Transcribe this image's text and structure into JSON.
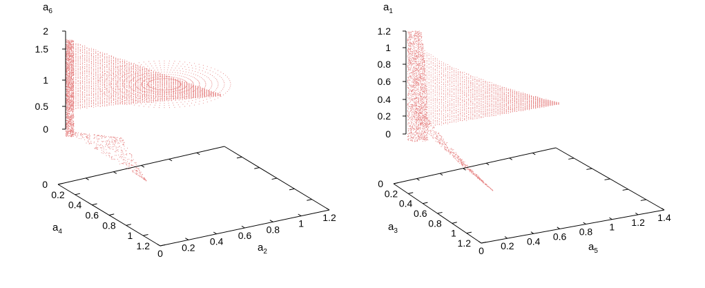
{
  "chart_data": [
    {
      "type": "scatter",
      "projection": "3d",
      "color": "#e58080",
      "axes": {
        "vertical": {
          "label_base": "a",
          "label_sub": "6",
          "ticks": [
            "2",
            "1.5",
            "1",
            "0.5",
            "0"
          ],
          "range": [
            0,
            2
          ]
        },
        "front": {
          "label_base": "a",
          "label_sub": "4",
          "ticks": [
            "0",
            "0.2",
            "0.4",
            "0.6",
            "0.8",
            "1",
            "1.2"
          ],
          "range": [
            0,
            1.2
          ]
        },
        "right": {
          "label_base": "a",
          "label_sub": "2",
          "ticks": [
            "0",
            "0.2",
            "0.4",
            "0.6",
            "0.8",
            "1",
            "1.2"
          ],
          "range": [
            0,
            1.2
          ]
        }
      },
      "grid": false
    },
    {
      "type": "scatter",
      "projection": "3d",
      "color": "#e58080",
      "axes": {
        "vertical": {
          "label_base": "a",
          "label_sub": "1",
          "ticks": [
            "1.2",
            "1",
            "0.8",
            "0.6",
            "0.4",
            "0.2",
            "0"
          ],
          "range": [
            0,
            1.2
          ]
        },
        "front": {
          "label_base": "a",
          "label_sub": "3",
          "ticks": [
            "0",
            "0.2",
            "0.4",
            "0.6",
            "0.8",
            "1",
            "1.2"
          ],
          "range": [
            0,
            1.2
          ]
        },
        "right": {
          "label_base": "a",
          "label_sub": "5",
          "ticks": [
            "0",
            "0.2",
            "0.4",
            "0.6",
            "0.8",
            "1",
            "1.2",
            "1.4"
          ],
          "range": [
            0,
            1.4
          ]
        }
      },
      "grid": false
    }
  ]
}
